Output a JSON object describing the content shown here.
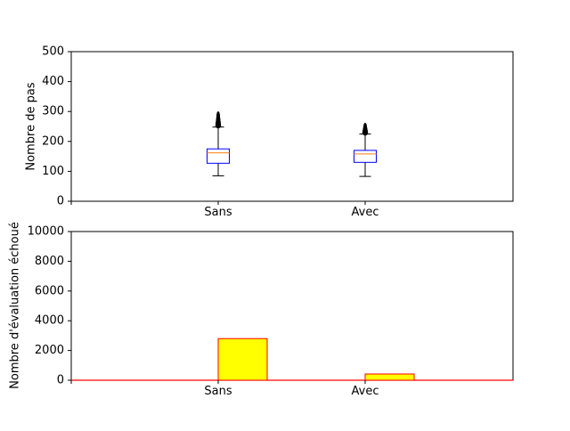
{
  "chart_data": [
    {
      "type": "box",
      "ylabel": "Nombre de pas",
      "ylim": [
        0,
        500
      ],
      "yticks": [
        0,
        100,
        200,
        300,
        400,
        500
      ],
      "categories": [
        "Sans",
        "Avec"
      ],
      "boxes": [
        {
          "name": "Sans",
          "whisker_low": 85,
          "q1": 127,
          "median": 162,
          "q3": 175,
          "whisker_high": 248,
          "outliers_min": 252,
          "outliers_max": 292
        },
        {
          "name": "Avec",
          "whisker_low": 83,
          "q1": 130,
          "median": 158,
          "q3": 170,
          "whisker_high": 225,
          "outliers_min": 228,
          "outliers_max": 254
        }
      ],
      "colors": {
        "box": "#0000ff",
        "median": "#ff7f0e",
        "whisker": "#000000",
        "flier": "#000000"
      }
    },
    {
      "type": "bar",
      "ylabel": "Nombre d'évaluation échoué",
      "ylim": [
        0,
        10000
      ],
      "yticks": [
        0,
        2000,
        4000,
        6000,
        8000,
        10000
      ],
      "categories": [
        "Sans",
        "Avec"
      ],
      "values": [
        2800,
        420
      ],
      "colors": {
        "fill": "#ffff00",
        "edge": "#ff0000"
      }
    }
  ]
}
